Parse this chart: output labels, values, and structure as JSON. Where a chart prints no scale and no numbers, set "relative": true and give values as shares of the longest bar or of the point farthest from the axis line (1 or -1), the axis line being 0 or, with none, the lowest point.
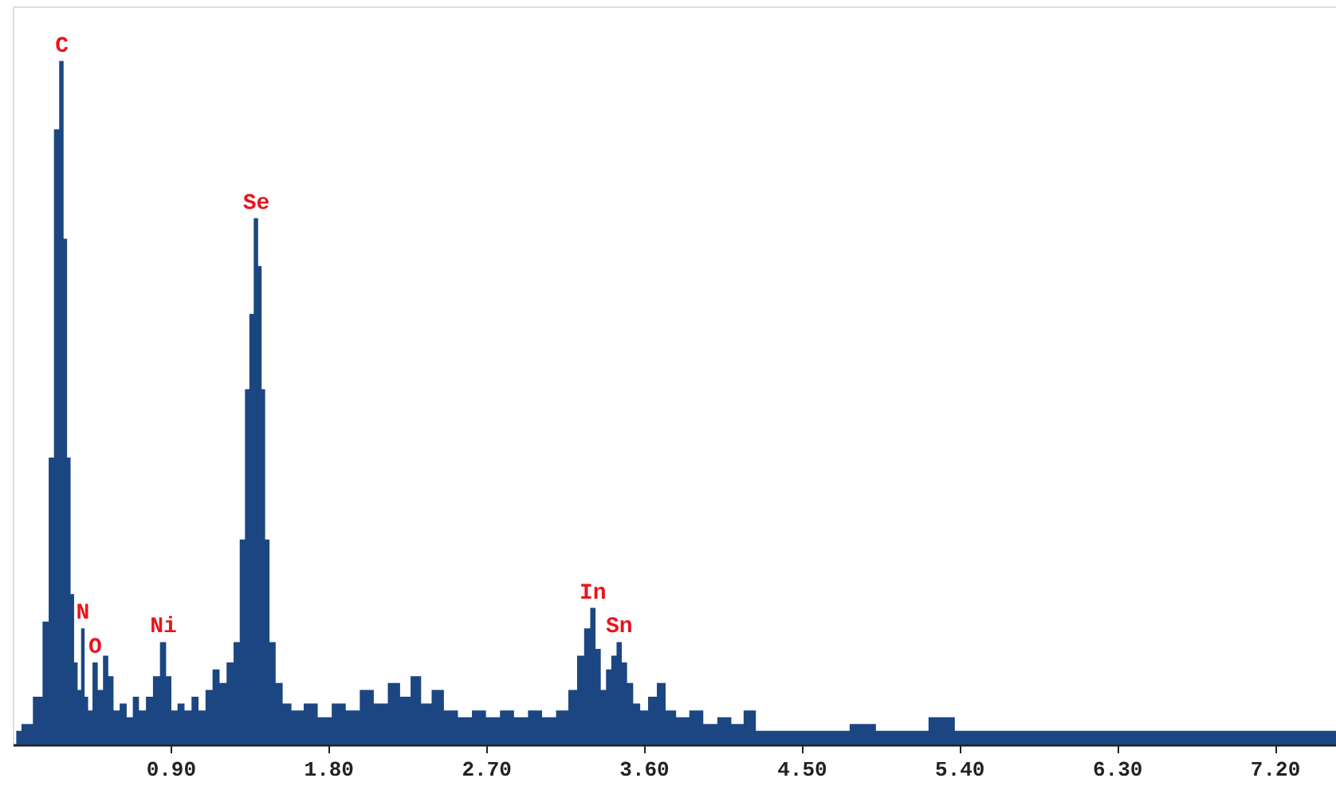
{
  "chart_data": {
    "type": "area",
    "relative": true,
    "color": "#1b4682",
    "x": [
      0.02,
      0.08,
      0.15,
      0.19,
      0.22,
      0.25,
      0.28,
      0.3,
      0.32,
      0.34,
      0.36,
      0.38,
      0.4,
      0.42,
      0.44,
      0.47,
      0.5,
      0.53,
      0.56,
      0.59,
      0.63,
      0.67,
      0.7,
      0.74,
      0.78,
      0.82,
      0.86,
      0.89,
      0.92,
      0.96,
      1.0,
      1.04,
      1.08,
      1.12,
      1.16,
      1.2,
      1.24,
      1.28,
      1.31,
      1.34,
      1.36,
      1.39,
      1.41,
      1.43,
      1.45,
      1.48,
      1.52,
      1.56,
      1.62,
      1.7,
      1.78,
      1.86,
      1.94,
      2.02,
      2.1,
      2.18,
      2.24,
      2.3,
      2.36,
      2.42,
      2.5,
      2.58,
      2.66,
      2.74,
      2.82,
      2.9,
      2.98,
      3.06,
      3.14,
      3.2,
      3.24,
      3.28,
      3.31,
      3.34,
      3.37,
      3.4,
      3.43,
      3.46,
      3.49,
      3.52,
      3.56,
      3.6,
      3.65,
      3.7,
      3.75,
      3.82,
      3.9,
      3.98,
      4.06,
      4.14,
      4.2,
      4.28,
      4.4,
      4.55,
      4.7,
      4.85,
      5.0,
      5.15,
      5.3,
      5.45,
      5.6,
      5.8,
      6.0,
      6.2,
      6.4,
      6.6,
      6.8,
      7.0,
      7.2,
      7.4,
      7.55
    ],
    "values": [
      0.02,
      0.03,
      0.07,
      0.18,
      0.42,
      0.9,
      1.0,
      0.74,
      0.42,
      0.22,
      0.12,
      0.08,
      0.17,
      0.07,
      0.05,
      0.12,
      0.08,
      0.13,
      0.1,
      0.05,
      0.06,
      0.04,
      0.07,
      0.05,
      0.07,
      0.1,
      0.15,
      0.1,
      0.05,
      0.06,
      0.05,
      0.07,
      0.05,
      0.08,
      0.11,
      0.09,
      0.12,
      0.15,
      0.3,
      0.52,
      0.63,
      0.77,
      0.7,
      0.52,
      0.3,
      0.15,
      0.09,
      0.06,
      0.05,
      0.06,
      0.04,
      0.06,
      0.05,
      0.08,
      0.06,
      0.09,
      0.07,
      0.1,
      0.06,
      0.08,
      0.05,
      0.04,
      0.05,
      0.04,
      0.05,
      0.04,
      0.05,
      0.04,
      0.05,
      0.08,
      0.13,
      0.17,
      0.2,
      0.14,
      0.08,
      0.11,
      0.13,
      0.15,
      0.12,
      0.09,
      0.06,
      0.05,
      0.07,
      0.09,
      0.05,
      0.04,
      0.05,
      0.03,
      0.04,
      0.03,
      0.05,
      0.02,
      0.02,
      0.02,
      0.02,
      0.03,
      0.02,
      0.02,
      0.04,
      0.02,
      0.02,
      0.02,
      0.02,
      0.02,
      0.02,
      0.02,
      0.02,
      0.02,
      0.02,
      0.02,
      0.02
    ],
    "xlim": [
      0,
      7.55
    ],
    "xticks": [
      {
        "value": 0.9,
        "label": "0.90"
      },
      {
        "value": 1.8,
        "label": "1.80"
      },
      {
        "value": 2.7,
        "label": "2.70"
      },
      {
        "value": 3.6,
        "label": "3.60"
      },
      {
        "value": 4.5,
        "label": "4.50"
      },
      {
        "value": 5.4,
        "label": "5.40"
      },
      {
        "value": 6.3,
        "label": "6.30"
      },
      {
        "value": 7.2,
        "label": "7.20"
      }
    ],
    "tick_labels": "x",
    "grid": false,
    "annotations": [
      {
        "text": "C",
        "x": 0.28,
        "y": 1.0
      },
      {
        "text": "N",
        "x": 0.4,
        "y": 0.17
      },
      {
        "text": "O",
        "x": 0.47,
        "y": 0.12
      },
      {
        "text": "Ni",
        "x": 0.86,
        "y": 0.15
      },
      {
        "text": "Se",
        "x": 1.39,
        "y": 0.77
      },
      {
        "text": "In",
        "x": 3.31,
        "y": 0.2
      },
      {
        "text": "Sn",
        "x": 3.46,
        "y": 0.15
      }
    ]
  }
}
